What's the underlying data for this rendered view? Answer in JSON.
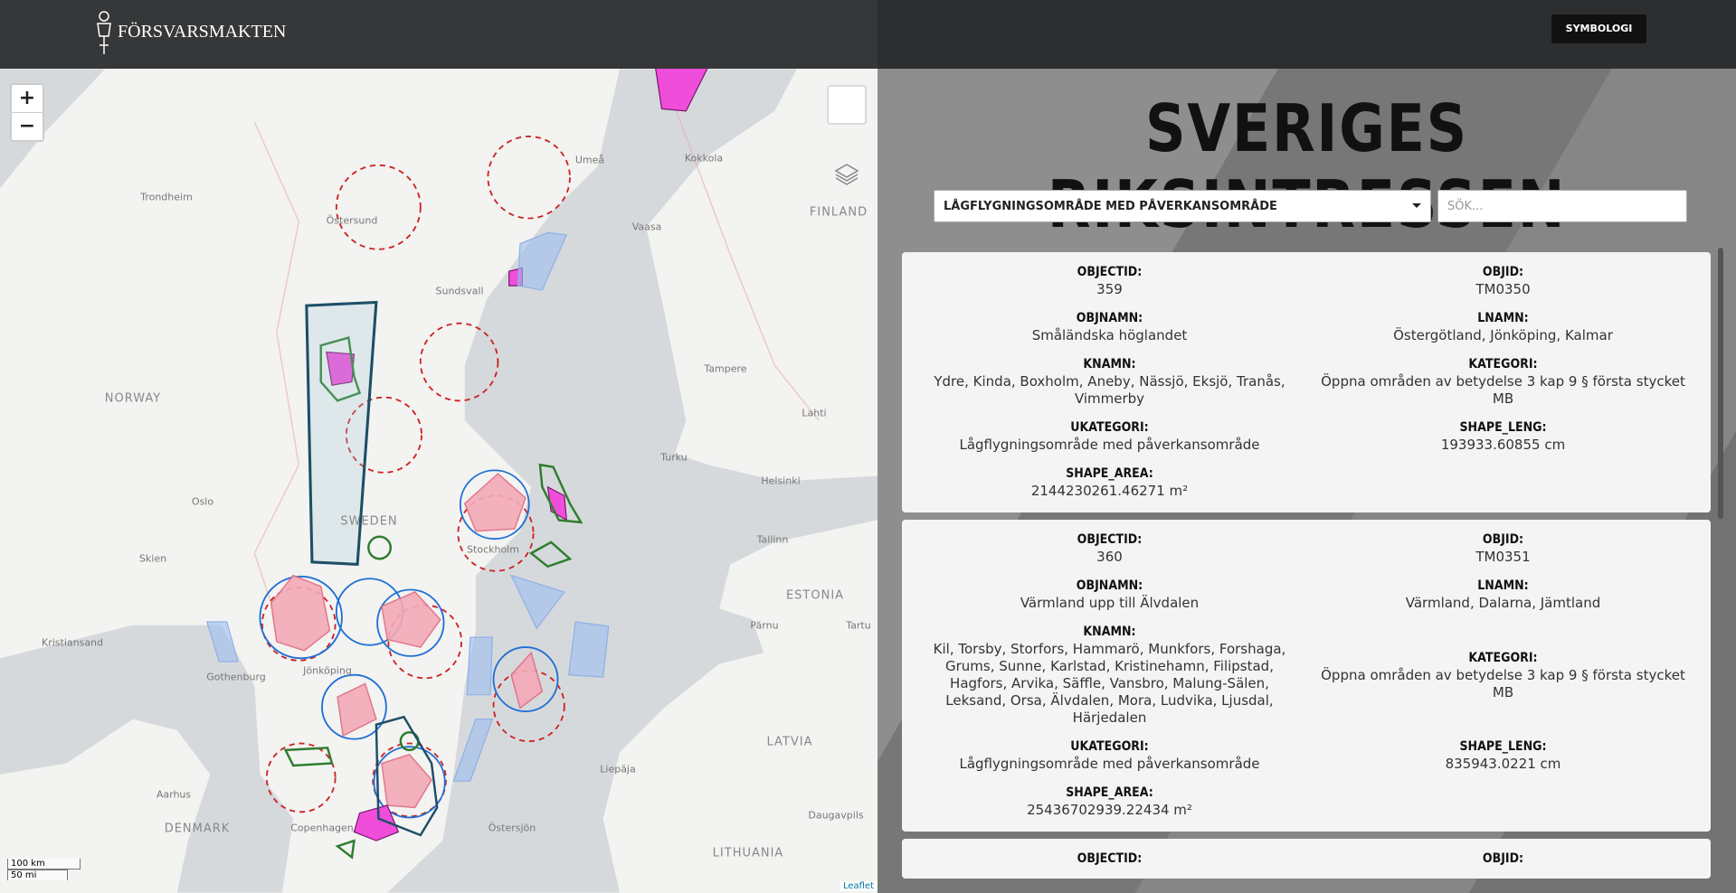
{
  "header": {
    "logo_text": "FÖRSVARSMAKTEN",
    "button": "SYMBOLOGI"
  },
  "map": {
    "zoom_in": "+",
    "zoom_out": "−",
    "attribution": "Leaflet",
    "scale": [
      "100 km",
      "50 mi"
    ],
    "labels": [
      "Trondheim",
      "Östersund",
      "Umeå",
      "Kokkola",
      "FINLAND",
      "Vaasa",
      "Sundsvall",
      "Tampere",
      "NORWAY",
      "Lahti",
      "Turku",
      "Helsinki",
      "Oslo",
      "SWEDEN",
      "Stockholm",
      "Tallinn",
      "Skien",
      "ESTONIA",
      "Kristiansand",
      "Pärnu",
      "Tartu",
      "Gothenburg",
      "Jönköping",
      "LATVIA",
      "Liepāja",
      "Aarhus",
      "DENMARK",
      "Copenhagen",
      "Daugavpils",
      "LITHUANIA",
      "Östersjön"
    ]
  },
  "panel": {
    "title": "SVERIGES RIKSINTRESSEN",
    "select_option": "LÅGFLYGNINGSOMRÅDE MED PÅVERKANSOMRÅDE",
    "search_placeholder": "SÖK...",
    "records": [
      {
        "rows": [
          [
            {
              "label": "OBJECTID:",
              "value": "359"
            },
            {
              "label": "OBJID:",
              "value": "TM0350"
            }
          ],
          [
            {
              "label": "OBJNAMN:",
              "value": "Småländska höglandet"
            },
            {
              "label": "LNAMN:",
              "value": "Östergötland, Jönköping, Kalmar"
            }
          ],
          [
            {
              "label": "KNAMN:",
              "value": "Ydre, Kinda, Boxholm, Aneby, Nässjö, Eksjö, Tranås, Vimmerby"
            },
            {
              "label": "KATEGORI:",
              "value": "Öppna områden av betydelse 3 kap 9 § första stycket MB"
            }
          ],
          [
            {
              "label": "UKATEGORI:",
              "value": "Lågflygningsområde med påverkansområde"
            },
            {
              "label": "SHAPE_LENG:",
              "value": "193933.60855 cm"
            }
          ],
          [
            {
              "label": "SHAPE_AREA:",
              "value": "2144230261.46271 m²"
            }
          ]
        ]
      },
      {
        "rows": [
          [
            {
              "label": "OBJECTID:",
              "value": "360"
            },
            {
              "label": "OBJID:",
              "value": "TM0351"
            }
          ],
          [
            {
              "label": "OBJNAMN:",
              "value": "Värmland upp till Älvdalen"
            },
            {
              "label": "LNAMN:",
              "value": "Värmland, Dalarna, Jämtland"
            }
          ],
          [
            {
              "label": "KNAMN:",
              "value": "Kil, Torsby, Storfors, Hammarö, Munkfors, Forshaga, Grums, Sunne, Karlstad, Kristinehamn, Filipstad, Hagfors, Arvika, Säffle, Vansbro, Malung-Sälen, Leksand, Orsa, Älvdalen, Mora, Ludvika, Ljusdal, Härjedalen"
            },
            {
              "label": "KATEGORI:",
              "value": "Öppna områden av betydelse 3 kap 9 § första stycket MB"
            }
          ],
          [
            {
              "label": "UKATEGORI:",
              "value": "Lågflygningsområde med påverkansområde"
            },
            {
              "label": "SHAPE_LENG:",
              "value": "835943.0221 cm"
            }
          ],
          [
            {
              "label": "SHAPE_AREA:",
              "value": "25436702939.22434 m²"
            }
          ]
        ]
      },
      {
        "rows": [
          [
            {
              "label": "OBJECTID:"
            },
            {
              "label": "OBJID:"
            }
          ]
        ]
      }
    ]
  }
}
